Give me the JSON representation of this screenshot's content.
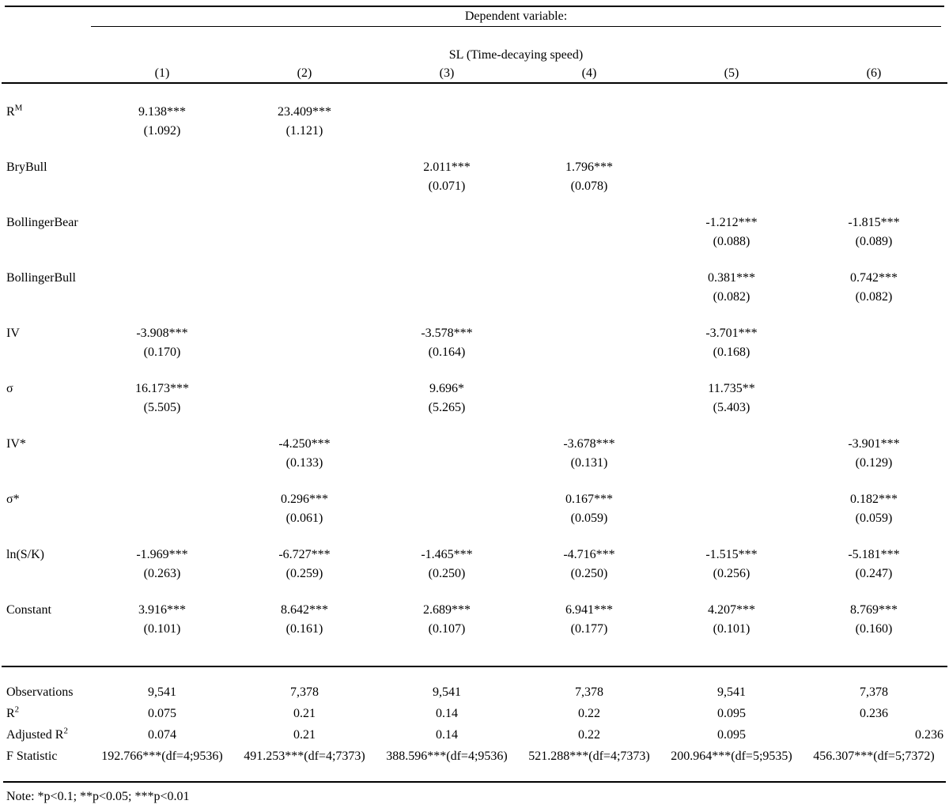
{
  "table": {
    "dependent_variable_label": "Dependent variable:",
    "dependent_variable_name": "SL (Time-decaying speed)",
    "column_headers": [
      "(1)",
      "(2)",
      "(3)",
      "(4)",
      "(5)",
      "(6)"
    ],
    "coefficient_rows": [
      {
        "label": "R",
        "label_sup": "M",
        "cells": [
          {
            "coef": "9.138***",
            "se": "(1.092)"
          },
          {
            "coef": "23.409***",
            "se": "(1.121)"
          },
          null,
          null,
          null,
          null
        ]
      },
      {
        "label": "BryBull",
        "cells": [
          null,
          null,
          {
            "coef": "2.011***",
            "se": "(0.071)"
          },
          {
            "coef": "1.796***",
            "se": "(0.078)"
          },
          null,
          null
        ]
      },
      {
        "label": "BollingerBear",
        "cells": [
          null,
          null,
          null,
          null,
          {
            "coef": "-1.212***",
            "se": "(0.088)"
          },
          {
            "coef": "-1.815***",
            "se": "(0.089)"
          }
        ]
      },
      {
        "label": "BollingerBull",
        "cells": [
          null,
          null,
          null,
          null,
          {
            "coef": "0.381***",
            "se": "(0.082)"
          },
          {
            "coef": "0.742***",
            "se": "(0.082)"
          }
        ]
      },
      {
        "label": "IV",
        "cells": [
          {
            "coef": "-3.908***",
            "se": "(0.170)"
          },
          null,
          {
            "coef": "-3.578***",
            "se": "(0.164)"
          },
          null,
          {
            "coef": "-3.701***",
            "se": "(0.168)"
          },
          null
        ]
      },
      {
        "label": "σ",
        "cells": [
          {
            "coef": "16.173***",
            "se": "(5.505)"
          },
          null,
          {
            "coef": "9.696*",
            "se": "(5.265)"
          },
          null,
          {
            "coef": "11.735**",
            "se": "(5.403)"
          },
          null
        ]
      },
      {
        "label": "IV*",
        "cells": [
          null,
          {
            "coef": "-4.250***",
            "se": "(0.133)"
          },
          null,
          {
            "coef": "-3.678***",
            "se": "(0.131)"
          },
          null,
          {
            "coef": "-3.901***",
            "se": "(0.129)"
          }
        ]
      },
      {
        "label": "σ*",
        "cells": [
          null,
          {
            "coef": "0.296***",
            "se": "(0.061)"
          },
          null,
          {
            "coef": "0.167***",
            "se": "(0.059)"
          },
          null,
          {
            "coef": "0.182***",
            "se": "(0.059)"
          }
        ]
      },
      {
        "label": "ln(S/K)",
        "cells": [
          {
            "coef": "-1.969***",
            "se": "(0.263)"
          },
          {
            "coef": "-6.727***",
            "se": "(0.259)"
          },
          {
            "coef": "-1.465***",
            "se": "(0.250)"
          },
          {
            "coef": "-4.716***",
            "se": "(0.250)"
          },
          {
            "coef": "-1.515***",
            "se": "(0.256)"
          },
          {
            "coef": "-5.181***",
            "se": "(0.247)"
          }
        ]
      },
      {
        "label": "Constant",
        "cells": [
          {
            "coef": "3.916***",
            "se": "(0.101)"
          },
          {
            "coef": "8.642***",
            "se": "(0.161)"
          },
          {
            "coef": "2.689***",
            "se": "(0.107)"
          },
          {
            "coef": "6.941***",
            "se": "(0.177)"
          },
          {
            "coef": "4.207***",
            "se": "(0.101)"
          },
          {
            "coef": "8.769***",
            "se": "(0.160)"
          }
        ]
      }
    ],
    "summary_rows": [
      {
        "label": "Observations",
        "values": [
          "9,541",
          "7,378",
          "9,541",
          "7,378",
          "9,541",
          "7,378"
        ]
      },
      {
        "label": "R",
        "label_sup": "2",
        "values": [
          "0.075",
          "0.21",
          "0.14",
          "0.22",
          "0.095",
          "0.236"
        ]
      },
      {
        "label": "Adjusted R",
        "label_sup": "2",
        "values": [
          "0.074",
          "0.21",
          "0.14",
          "0.22",
          "0.095",
          "0.236"
        ],
        "last_value_right_aligned": true
      },
      {
        "label": "F Statistic",
        "values": [
          "192.766***(df=4;9536)",
          "491.253***(df=4;7373)",
          "388.596***(df=4;9536)",
          "521.288***(df=4;7373)",
          "200.964***(df=5;9535)",
          "456.307***(df=5;7372)"
        ]
      }
    ],
    "note": "Note: *p<0.1; **p<0.05; ***p<0.01"
  }
}
